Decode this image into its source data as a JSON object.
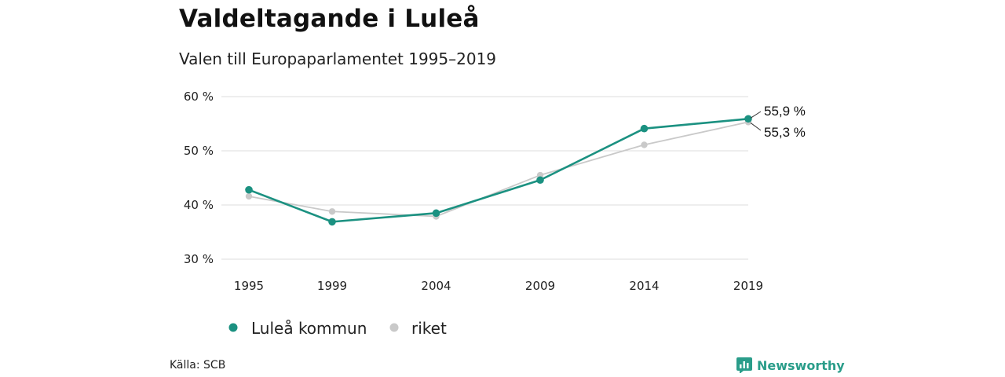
{
  "title": "Valdeltagande i Luleå",
  "subtitle": "Valen till Europaparlamentet 1995–2019",
  "source": "Källa: SCB",
  "brand": "Newsworthy",
  "colors": {
    "primary": "#1b9181",
    "secondary": "#c9c9c9",
    "grid": "#dddddd",
    "brand": "#2a9d8a"
  },
  "chart_data": {
    "type": "line",
    "title": "Valdeltagande i Luleå",
    "subtitle": "Valen till Europaparlamentet 1995–2019",
    "categories": [
      "1995",
      "1999",
      "2004",
      "2009",
      "2014",
      "2019"
    ],
    "x": [
      1995,
      1999,
      2004,
      2009,
      2014,
      2019
    ],
    "ylim": [
      30,
      60
    ],
    "yticks": [
      30,
      40,
      50,
      60
    ],
    "ytick_labels": [
      "30 %",
      "40 %",
      "50 %",
      "60 %"
    ],
    "grid": true,
    "legend_position": "bottom-left",
    "series": [
      {
        "name": "Luleå kommun",
        "values": [
          42.8,
          36.9,
          38.5,
          44.6,
          54.1,
          55.9
        ],
        "end_label": "55,9 %"
      },
      {
        "name": "riket",
        "values": [
          41.6,
          38.8,
          37.9,
          45.5,
          51.1,
          55.3
        ],
        "end_label": "55,3 %"
      }
    ]
  }
}
